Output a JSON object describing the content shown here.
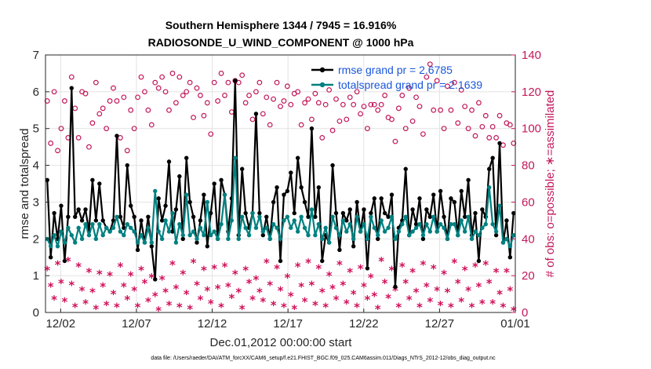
{
  "chart_data": {
    "type": "line",
    "title_line1": "Southern Hemisphere 1344 / 7945 = 16.916%",
    "title_line2": "RADIOSONDE_U_WIND_COMPONENT @ 1000 hPa",
    "xlabel": "Dec.01,2012 00:00:00 start",
    "ylabel_left": "rmse and totalspread",
    "ylabel_right": "# of obs: o=possible; ∗=assimilated",
    "ylim_left": [
      0,
      7
    ],
    "ylim_right": [
      0,
      140
    ],
    "xlim": [
      0,
      124
    ],
    "yticks_left": [
      "0",
      "1",
      "2",
      "3",
      "4",
      "5",
      "6",
      "7"
    ],
    "yticks_right": [
      "0",
      "20",
      "40",
      "60",
      "80",
      "100",
      "120",
      "140"
    ],
    "xticks": [
      {
        "pos": 4,
        "label": "12/02"
      },
      {
        "pos": 24,
        "label": "12/07"
      },
      {
        "pos": 44,
        "label": "12/12"
      },
      {
        "pos": 64,
        "label": "12/17"
      },
      {
        "pos": 84,
        "label": "12/22"
      },
      {
        "pos": 104,
        "label": "12/27"
      },
      {
        "pos": 124,
        "label": "01/01"
      }
    ],
    "legend": [
      {
        "name": "rmse grand pr = 2.6785",
        "color": "#000000"
      },
      {
        "name": "totalspread grand pr = 2.1639",
        "color": "#008080"
      }
    ],
    "footnote": "data file: /Users/raeder/DAI/ATM_forcXX/CAM6_setup/f.e21.FHIST_BGC.f09_025.CAM6assim.011/Diags_NTrS_2012-12/obs_diag_output.nc",
    "series": [
      {
        "name": "rmse",
        "color": "#000000",
        "values": [
          3.6,
          1.5,
          2.7,
          2.0,
          2.9,
          1.4,
          2.6,
          6.1,
          2.6,
          2.8,
          2.5,
          2.8,
          2.2,
          3.6,
          2.5,
          3.5,
          2.5,
          2.3,
          2.2,
          2.5,
          4.8,
          2.6,
          2.3,
          4.0,
          2.9,
          2.6,
          1.7,
          2.5,
          1.9,
          2.6,
          1.8,
          0.9,
          3.1,
          2.5,
          2.9,
          4.1,
          2.2,
          2.8,
          3.7,
          2.0,
          4.2,
          3.0,
          2.6,
          1.9,
          2.5,
          3.2,
          1.8,
          2.7,
          3.5,
          2.0,
          3.6,
          3.2,
          2.2,
          3.1,
          6.3,
          2.1,
          3.9,
          2.7,
          2.3,
          2.7,
          5.4,
          2.7,
          2.1,
          2.6,
          2.0,
          3.0,
          3.4,
          1.4,
          3.2,
          3.3,
          3.8,
          2.7,
          4.2,
          3.4,
          3.0,
          2.6,
          5.0,
          2.6,
          3.4,
          1.4,
          2.1,
          1.9,
          4.0,
          2.7,
          1.7,
          2.7,
          2.5,
          2.8,
          1.8,
          3.0,
          2.2,
          2.8,
          1.2,
          2.7,
          3.1,
          2.0,
          3.1,
          2.7,
          2.6,
          3.2,
          0.7,
          2.3,
          2.5,
          3.9,
          2.1,
          2.8,
          2.4,
          3.1,
          2.0,
          2.8,
          2.6,
          3.2,
          2.2,
          3.3,
          2.6,
          2.0,
          3.1,
          3.0,
          2.1,
          3.3,
          2.6,
          3.6,
          2.1,
          2.7,
          1.4,
          2.8,
          2.6,
          3.9,
          4.2,
          2.1,
          4.6,
          1.9,
          2.5,
          1.5,
          2.7
        ]
      },
      {
        "name": "totalspread",
        "color": "#008080",
        "values": [
          2.0,
          1.8,
          2.1,
          1.8,
          2.2,
          1.9,
          2.3,
          2.1,
          1.9,
          2.3,
          2.0,
          2.4,
          2.1,
          2.4,
          2.0,
          2.4,
          2.1,
          2.3,
          2.2,
          2.3,
          2.6,
          2.2,
          2.1,
          2.4,
          2.3,
          2.2,
          1.9,
          2.1,
          1.9,
          2.3,
          1.9,
          3.3,
          2.2,
          2.0,
          2.5,
          2.2,
          2.7,
          1.9,
          2.4,
          2.1,
          3.2,
          2.1,
          2.2,
          2.0,
          2.3,
          2.1,
          3.0,
          2.1,
          2.2,
          2.0,
          2.4,
          3.2,
          2.0,
          2.5,
          4.2,
          2.0,
          2.6,
          2.3,
          2.1,
          2.7,
          2.3,
          2.6,
          2.2,
          2.3,
          2.0,
          2.4,
          2.3,
          2.0,
          2.5,
          2.6,
          2.3,
          2.5,
          2.2,
          2.6,
          2.3,
          2.1,
          2.8,
          2.1,
          2.4,
          2.0,
          2.3,
          1.9,
          2.6,
          2.3,
          2.1,
          2.5,
          2.2,
          2.4,
          2.0,
          2.6,
          2.2,
          2.4,
          2.0,
          2.6,
          2.3,
          2.1,
          2.5,
          2.2,
          2.3,
          2.6,
          2.0,
          2.2,
          2.4,
          2.6,
          2.1,
          2.2,
          2.3,
          2.4,
          2.1,
          2.4,
          2.2,
          2.6,
          2.2,
          2.4,
          2.3,
          2.0,
          2.4,
          2.4,
          2.1,
          2.5,
          2.2,
          2.6,
          2.0,
          2.2,
          2.1,
          2.3,
          2.4,
          3.4,
          2.4,
          2.2,
          2.9,
          1.9,
          2.0,
          1.8,
          2.1
        ]
      }
    ],
    "obs_possible": [
      115,
      92,
      120,
      88,
      100,
      115,
      95,
      128,
      111,
      95,
      120,
      119,
      90,
      103,
      125,
      108,
      111,
      100,
      115,
      122,
      115,
      95,
      117,
      88,
      110,
      100,
      117,
      128,
      120,
      110,
      102,
      125,
      122,
      128,
      120,
      110,
      130,
      114,
      128,
      118,
      120,
      125,
      106,
      122,
      118,
      107,
      114,
      97,
      125,
      115,
      130,
      118,
      125,
      109,
      126,
      125,
      129,
      114,
      118,
      105,
      120,
      125,
      108,
      117,
      102,
      116,
      125,
      112,
      115,
      123,
      113,
      119,
      120,
      102,
      114,
      116,
      105,
      119,
      114,
      95,
      113,
      121,
      99,
      116,
      104,
      113,
      105,
      117,
      113,
      120,
      108,
      112,
      100,
      113,
      113,
      110,
      113,
      118,
      106,
      105,
      93,
      111,
      118,
      100,
      122,
      104,
      117,
      112,
      97,
      128,
      135,
      110,
      126,
      110,
      100,
      123,
      110,
      125,
      103,
      121,
      112,
      100,
      110,
      96,
      114,
      101,
      107,
      95,
      101,
      95,
      107,
      91,
      103,
      102,
      92
    ],
    "obs_assimilated": [
      23,
      14,
      7,
      26,
      16,
      6,
      28,
      15,
      3,
      25,
      12,
      5,
      22,
      11,
      2,
      21,
      14,
      4,
      20,
      10,
      3,
      25,
      14,
      7,
      20,
      12,
      3,
      23,
      16,
      6,
      19,
      9,
      1,
      18,
      11,
      4,
      26,
      13,
      3,
      21,
      10,
      2,
      27,
      15,
      7,
      23,
      12,
      5,
      24,
      13,
      3,
      25,
      14,
      8,
      21,
      11,
      2,
      23,
      16,
      7,
      18,
      11,
      6,
      27,
      15,
      4,
      24,
      12,
      3,
      19,
      9,
      2,
      25,
      14,
      6,
      27,
      15,
      4,
      24,
      11,
      3,
      20,
      13,
      7,
      26,
      15,
      5,
      22,
      10,
      3,
      24,
      14,
      7,
      19,
      9,
      2,
      28,
      16,
      8,
      23,
      12,
      3,
      25,
      16,
      7,
      22,
      11,
      3,
      26,
      14,
      6,
      24,
      12,
      4,
      21,
      11,
      3,
      27,
      16,
      6,
      23,
      12,
      3,
      25,
      14,
      5,
      26,
      16,
      5,
      22,
      10,
      3,
      22,
      12,
      1
    ]
  }
}
